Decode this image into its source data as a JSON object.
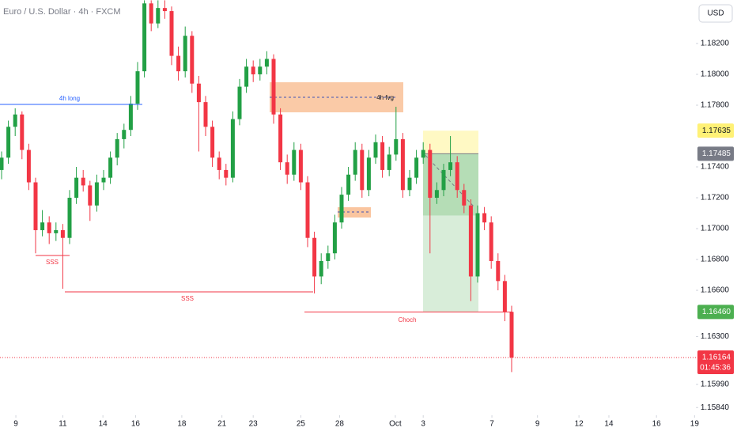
{
  "chart_data": {
    "type": "candlestick",
    "title": "Euro / U.S. Dollar · 4h · FXCM",
    "currency": "USD",
    "up_color": "#22a045",
    "down_color": "#f23645",
    "ohlc": [
      [
        1.1738,
        1.175,
        1.1732,
        1.1746
      ],
      [
        1.1746,
        1.177,
        1.1742,
        1.1766
      ],
      [
        1.1766,
        1.1778,
        1.176,
        1.1774
      ],
      [
        1.1774,
        1.1776,
        1.1745,
        1.1751
      ],
      [
        1.1751,
        1.1755,
        1.1725,
        1.173
      ],
      [
        1.173,
        1.1733,
        1.1684,
        1.1699
      ],
      [
        1.1699,
        1.1712,
        1.1695,
        1.1704
      ],
      [
        1.1704,
        1.1708,
        1.169,
        1.1697
      ],
      [
        1.1697,
        1.1704,
        1.1692,
        1.1699
      ],
      [
        1.1699,
        1.1703,
        1.1661,
        1.1694
      ],
      [
        1.1694,
        1.1725,
        1.169,
        1.172
      ],
      [
        1.172,
        1.174,
        1.1716,
        1.1733
      ],
      [
        1.1733,
        1.1738,
        1.1724,
        1.1728
      ],
      [
        1.1728,
        1.1731,
        1.1705,
        1.1715
      ],
      [
        1.1715,
        1.1735,
        1.1711,
        1.173
      ],
      [
        1.173,
        1.1738,
        1.1725,
        1.1733
      ],
      [
        1.1733,
        1.175,
        1.1729,
        1.1746
      ],
      [
        1.1746,
        1.1762,
        1.1741,
        1.1758
      ],
      [
        1.1758,
        1.1768,
        1.1752,
        1.1764
      ],
      [
        1.1764,
        1.1786,
        1.176,
        1.1781
      ],
      [
        1.1781,
        1.1808,
        1.1777,
        1.1802
      ],
      [
        1.1802,
        1.1848,
        1.1798,
        1.1846
      ],
      [
        1.1846,
        1.1848,
        1.1828,
        1.1833
      ],
      [
        1.1833,
        1.1848,
        1.183,
        1.1843
      ],
      [
        1.1843,
        1.1848,
        1.1836,
        1.1841
      ],
      [
        1.1841,
        1.1844,
        1.1806,
        1.1812
      ],
      [
        1.1812,
        1.1818,
        1.1796,
        1.1802
      ],
      [
        1.1802,
        1.1831,
        1.1798,
        1.1825
      ],
      [
        1.1825,
        1.1828,
        1.1788,
        1.1794
      ],
      [
        1.1794,
        1.1799,
        1.175,
        1.1782
      ],
      [
        1.1782,
        1.1786,
        1.176,
        1.1766
      ],
      [
        1.1766,
        1.177,
        1.174,
        1.1746
      ],
      [
        1.1746,
        1.175,
        1.1732,
        1.1738
      ],
      [
        1.1738,
        1.1742,
        1.1728,
        1.1733
      ],
      [
        1.1733,
        1.1776,
        1.173,
        1.1771
      ],
      [
        1.1771,
        1.1797,
        1.1767,
        1.1792
      ],
      [
        1.1792,
        1.181,
        1.1788,
        1.1805
      ],
      [
        1.1805,
        1.1809,
        1.1795,
        1.18
      ],
      [
        1.18,
        1.181,
        1.1796,
        1.1805
      ],
      [
        1.1805,
        1.1815,
        1.18,
        1.181
      ],
      [
        1.181,
        1.1813,
        1.1768,
        1.1774
      ],
      [
        1.1774,
        1.1778,
        1.1738,
        1.1743
      ],
      [
        1.1743,
        1.1748,
        1.1729,
        1.1735
      ],
      [
        1.1735,
        1.1756,
        1.1731,
        1.1751
      ],
      [
        1.1751,
        1.1755,
        1.1725,
        1.173
      ],
      [
        1.173,
        1.1734,
        1.1688,
        1.1694
      ],
      [
        1.1694,
        1.1698,
        1.1658,
        1.1669
      ],
      [
        1.1669,
        1.1684,
        1.1664,
        1.1679
      ],
      [
        1.1679,
        1.1689,
        1.1674,
        1.1684
      ],
      [
        1.1684,
        1.1709,
        1.168,
        1.1704
      ],
      [
        1.1704,
        1.1727,
        1.17,
        1.1722
      ],
      [
        1.1722,
        1.174,
        1.1718,
        1.1735
      ],
      [
        1.1735,
        1.1756,
        1.1731,
        1.1751
      ],
      [
        1.1751,
        1.1755,
        1.172,
        1.1725
      ],
      [
        1.1725,
        1.1751,
        1.1721,
        1.1746
      ],
      [
        1.1746,
        1.1761,
        1.1742,
        1.1756
      ],
      [
        1.1756,
        1.176,
        1.1733,
        1.1738
      ],
      [
        1.1738,
        1.1753,
        1.1734,
        1.1748
      ],
      [
        1.1748,
        1.1779,
        1.1744,
        1.1758
      ],
      [
        1.1758,
        1.1762,
        1.172,
        1.1725
      ],
      [
        1.1725,
        1.1738,
        1.1721,
        1.1733
      ],
      [
        1.1733,
        1.1751,
        1.1729,
        1.1746
      ],
      [
        1.1746,
        1.1756,
        1.1742,
        1.1751
      ],
      [
        1.1751,
        1.1755,
        1.1684,
        1.172
      ],
      [
        1.172,
        1.173,
        1.1716,
        1.1725
      ],
      [
        1.1725,
        1.1742,
        1.1721,
        1.1738
      ],
      [
        1.1738,
        1.176,
        1.1734,
        1.1743
      ],
      [
        1.1743,
        1.1747,
        1.172,
        1.1725
      ],
      [
        1.1725,
        1.1729,
        1.171,
        1.1715
      ],
      [
        1.1715,
        1.1719,
        1.1653,
        1.1669
      ],
      [
        1.1669,
        1.1715,
        1.1665,
        1.171
      ],
      [
        1.171,
        1.1714,
        1.1699,
        1.1704
      ],
      [
        1.1704,
        1.1708,
        1.1674,
        1.1679
      ],
      [
        1.1679,
        1.1684,
        1.166,
        1.1666
      ],
      [
        1.1666,
        1.167,
        1.164,
        1.1646
      ],
      [
        1.1646,
        1.165,
        1.1607,
        1.16164
      ]
    ],
    "xlim": [
      -0.2326,
      102.093
    ],
    "xticks": [
      {
        "value": 2.1,
        "label": "9"
      },
      {
        "value": 9,
        "label": "11"
      },
      {
        "value": 14.9,
        "label": "14"
      },
      {
        "value": 19.7,
        "label": "16"
      },
      {
        "value": 26.5,
        "label": "18"
      },
      {
        "value": 32.4,
        "label": "21"
      },
      {
        "value": 37,
        "label": "23"
      },
      {
        "value": 44,
        "label": "25"
      },
      {
        "value": 49.7,
        "label": "28"
      },
      {
        "value": 57.9,
        "label": "Oct"
      },
      {
        "value": 62,
        "label": "3"
      },
      {
        "value": 72.1,
        "label": "7"
      },
      {
        "value": 78.8,
        "label": "9"
      },
      {
        "value": 84.9,
        "label": "12"
      },
      {
        "value": 89.3,
        "label": "14"
      },
      {
        "value": 96.3,
        "label": "16"
      },
      {
        "value": 101.9,
        "label": "19"
      }
    ],
    "ylim": [
      1.1579,
      1.18482
    ],
    "yticks": [
      {
        "value": 1.182,
        "label": "1.18200"
      },
      {
        "value": 1.18,
        "label": "1.18000"
      },
      {
        "value": 1.178,
        "label": "1.17800"
      },
      {
        "value": 1.174,
        "label": "1.17400"
      },
      {
        "value": 1.172,
        "label": "1.17200"
      },
      {
        "value": 1.17,
        "label": "1.17000"
      },
      {
        "value": 1.168,
        "label": "1.16800"
      },
      {
        "value": 1.166,
        "label": "1.16600"
      },
      {
        "value": 1.163,
        "label": "1.16300"
      },
      {
        "value": 1.1599,
        "label": "1.15990"
      },
      {
        "value": 1.1584,
        "label": "1.15840"
      }
    ],
    "stop_loss": {
      "value": 1.17635,
      "label": "1.17635"
    },
    "entry": {
      "value": 1.17485,
      "label": "1.17485"
    },
    "take_profit": {
      "value": 1.1646,
      "label": "1.16460"
    },
    "last_price": {
      "value": 1.16164,
      "label": "1.16164",
      "countdown": "01:45:36"
    },
    "annotations": [
      "4h long",
      "4h fvg",
      "SSS",
      "SSS",
      "Choch"
    ]
  }
}
